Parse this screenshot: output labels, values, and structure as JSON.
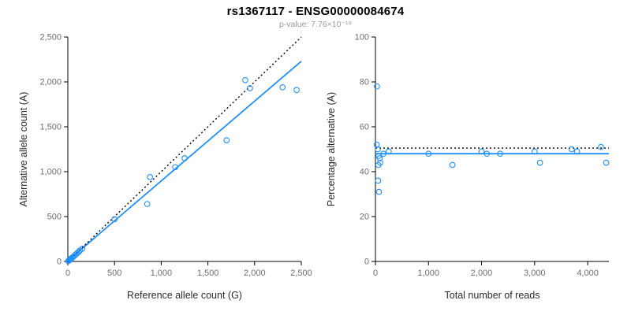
{
  "title": "rs1367117 - ENSG00000084674",
  "subtitle": "p-value: 7.76×10⁻¹⁹",
  "accent_color": "#1E90FF",
  "chart_data": [
    {
      "type": "scatter",
      "name": "allele-counts-scatter",
      "xlabel": "Reference allele count (G)",
      "ylabel": "Alternative allele count (A)",
      "xlim": [
        0,
        2500
      ],
      "ylim": [
        0,
        2500
      ],
      "xticks": [
        0,
        500,
        1000,
        1500,
        2000,
        2500
      ],
      "xtick_labels": [
        "0",
        "500",
        "1,000",
        "1,500",
        "2,000",
        "2,500"
      ],
      "yticks": [
        0,
        500,
        1000,
        1500,
        2000,
        2500
      ],
      "ytick_labels": [
        "0",
        "500",
        "1,000",
        "1,500",
        "2,000",
        "2,500"
      ],
      "grid": false,
      "point_color": "#1E90FF",
      "points": [
        [
          5,
          5
        ],
        [
          12,
          10
        ],
        [
          20,
          18
        ],
        [
          28,
          24
        ],
        [
          35,
          32
        ],
        [
          45,
          40
        ],
        [
          55,
          50
        ],
        [
          70,
          62
        ],
        [
          85,
          78
        ],
        [
          100,
          92
        ],
        [
          115,
          105
        ],
        [
          130,
          122
        ],
        [
          155,
          142
        ],
        [
          500,
          470
        ],
        [
          850,
          640
        ],
        [
          880,
          940
        ],
        [
          1150,
          1050
        ],
        [
          1250,
          1150
        ],
        [
          1700,
          1350
        ],
        [
          1900,
          2020
        ],
        [
          1950,
          1930
        ],
        [
          2300,
          1940
        ],
        [
          2450,
          1910
        ]
      ],
      "lines": [
        {
          "name": "regression",
          "style": "solid",
          "color": "#1E90FF",
          "from": [
            0,
            8
          ],
          "to": [
            2500,
            2230
          ]
        },
        {
          "name": "identity",
          "style": "dotted",
          "color": "#000000",
          "from": [
            0,
            0
          ],
          "to": [
            2500,
            2500
          ]
        }
      ]
    },
    {
      "type": "scatter",
      "name": "percentage-alternative-scatter",
      "xlabel": "Total number of reads",
      "ylabel": "Percentage alternative (A)",
      "xlim": [
        0,
        4400
      ],
      "ylim": [
        0,
        100
      ],
      "xticks": [
        0,
        1000,
        2000,
        3000,
        4000
      ],
      "xtick_labels": [
        "0",
        "1,000",
        "2,000",
        "3,000",
        "4,000"
      ],
      "yticks": [
        0,
        20,
        40,
        60,
        80,
        100
      ],
      "ytick_labels": [
        "0",
        "20",
        "40",
        "60",
        "80",
        "100"
      ],
      "grid": false,
      "point_color": "#1E90FF",
      "points": [
        [
          30,
          78
        ],
        [
          25,
          52
        ],
        [
          45,
          50
        ],
        [
          60,
          47
        ],
        [
          80,
          46
        ],
        [
          90,
          44
        ],
        [
          55,
          43
        ],
        [
          50,
          36
        ],
        [
          65,
          31
        ],
        [
          150,
          48
        ],
        [
          250,
          49
        ],
        [
          1000,
          48
        ],
        [
          1450,
          43
        ],
        [
          2000,
          49
        ],
        [
          2100,
          48
        ],
        [
          2350,
          48
        ],
        [
          3000,
          49
        ],
        [
          3100,
          44
        ],
        [
          3700,
          50
        ],
        [
          3800,
          49
        ],
        [
          4250,
          51
        ],
        [
          4350,
          44
        ]
      ],
      "lines": [
        {
          "name": "fitted-ratio",
          "style": "solid",
          "color": "#1E90FF",
          "y": 48
        },
        {
          "name": "expected-50",
          "style": "dotted",
          "color": "#000000",
          "y": 50.5
        }
      ]
    }
  ]
}
